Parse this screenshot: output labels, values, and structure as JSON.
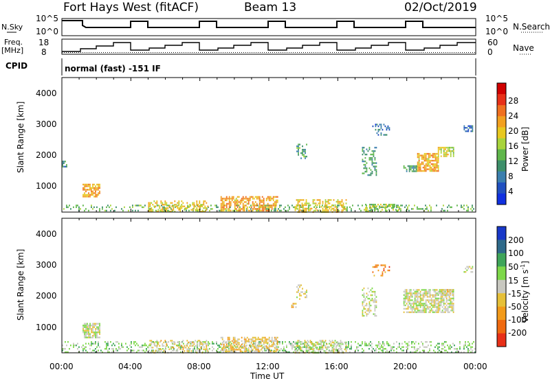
{
  "header": {
    "station": "Fort Hays West (fitACF)",
    "beam": "Beam 13",
    "date": "02/Oct/2019"
  },
  "top_panels": {
    "nsky_label": "N.Sky",
    "nsky_ticks": [
      "10^5",
      "10^0"
    ],
    "nsearch_label": "N.Search",
    "nsearch_ticks": [
      "10^5",
      "10^0"
    ],
    "freq_label_1": "Freq.",
    "freq_label_2": "[MHz]",
    "freq_ticks": [
      "18",
      "8"
    ],
    "nave_label": "Nave",
    "nave_ticks": [
      "60",
      "0"
    ],
    "cpid_label": "CPID",
    "cpid_text": "normal (fast) -151 IF"
  },
  "x_axis": {
    "ticks": [
      "00:00",
      "04:00",
      "08:00",
      "12:00",
      "16:00",
      "20:00",
      "00:00"
    ],
    "label": "Time UT"
  },
  "power_panel": {
    "ylabel": "Slant Range [km]",
    "yticks": [
      "4000",
      "3000",
      "2000",
      "1000"
    ],
    "colorbar_label": "Power [dB]",
    "colorbar_ticks": [
      "28",
      "24",
      "20",
      "16",
      "12",
      "8",
      "4"
    ],
    "colors": [
      "#1030e0",
      "#2050c0",
      "#3b7fae",
      "#3d8f6a",
      "#5fb64b",
      "#a8d43c",
      "#e8c820",
      "#f2a020",
      "#f07020",
      "#e83018",
      "#d00000"
    ]
  },
  "velocity_panel": {
    "ylabel": "Slant Range [km]",
    "yticks": [
      "4000",
      "3000",
      "2000",
      "1000"
    ],
    "colorbar_label": "Velocity [m s^-1]",
    "colorbar_ticks": [
      "200",
      "100",
      "50",
      "15",
      "-15",
      "-50",
      "-100",
      "-200"
    ],
    "colors": [
      "#1838c8",
      "#2f6a8a",
      "#3fa55a",
      "#7ed84a",
      "#c8c8c0",
      "#e6c038",
      "#f29a1a",
      "#f06a10",
      "#e83018"
    ]
  },
  "chart_data": [
    {
      "type": "heatmap",
      "title": "Fort Hays West (fitACF)",
      "xlabel": "Time UT",
      "ylabel": "Slant Range [km]",
      "colorbar": "Power [dB]",
      "x_range_hours": [
        0,
        24
      ],
      "y_range_km": [
        180,
        4550
      ],
      "c_range": [
        0,
        30
      ],
      "patches": [
        {
          "t0": 0.0,
          "t1": 24.0,
          "r0": 220,
          "r1": 420,
          "c": 12,
          "density": 0.28
        },
        {
          "t0": 5.0,
          "t1": 8.5,
          "r0": 200,
          "r1": 560,
          "c": 18,
          "density": 0.45
        },
        {
          "t0": 9.2,
          "t1": 12.5,
          "r0": 200,
          "r1": 700,
          "c": 20,
          "density": 0.6
        },
        {
          "t0": 13.5,
          "t1": 16.5,
          "r0": 200,
          "r1": 600,
          "c": 18,
          "density": 0.5
        },
        {
          "t0": 17.5,
          "t1": 19.5,
          "r0": 200,
          "r1": 450,
          "c": 14,
          "density": 0.35
        },
        {
          "t0": 1.2,
          "t1": 2.2,
          "r0": 700,
          "r1": 1100,
          "c": 20,
          "density": 0.75
        },
        {
          "t0": 0.0,
          "t1": 0.3,
          "r0": 1650,
          "r1": 1850,
          "c": 8,
          "density": 0.6
        },
        {
          "t0": 13.6,
          "t1": 14.2,
          "r0": 1900,
          "r1": 2400,
          "c": 10,
          "density": 0.45
        },
        {
          "t0": 17.4,
          "t1": 18.2,
          "r0": 1400,
          "r1": 2300,
          "c": 10,
          "density": 0.35
        },
        {
          "t0": 19.8,
          "t1": 20.6,
          "r0": 1500,
          "r1": 1700,
          "c": 10,
          "density": 0.55
        },
        {
          "t0": 20.6,
          "t1": 21.8,
          "r0": 1500,
          "r1": 2100,
          "c": 20,
          "density": 0.72
        },
        {
          "t0": 21.8,
          "t1": 22.7,
          "r0": 2000,
          "r1": 2300,
          "c": 16,
          "density": 0.7
        },
        {
          "t0": 23.3,
          "t1": 23.8,
          "r0": 2800,
          "r1": 3000,
          "c": 6,
          "density": 0.5
        },
        {
          "t0": 18.0,
          "t1": 19.0,
          "r0": 2700,
          "r1": 3050,
          "c": 6,
          "density": 0.25
        }
      ]
    },
    {
      "type": "heatmap",
      "xlabel": "Time UT",
      "ylabel": "Slant Range [km]",
      "colorbar": "Velocity [m s^-1]",
      "x_range_hours": [
        0,
        24
      ],
      "y_range_km": [
        180,
        4550
      ],
      "c_range": [
        -200,
        200
      ],
      "patches": [
        {
          "t0": 0.0,
          "t1": 24.0,
          "r0": 220,
          "r1": 560,
          "c": 40,
          "density": 0.3
        },
        {
          "t0": 5.0,
          "t1": 8.5,
          "r0": 200,
          "r1": 600,
          "c": -30,
          "density": 0.4
        },
        {
          "t0": 9.2,
          "t1": 12.5,
          "r0": 200,
          "r1": 700,
          "c": -40,
          "density": 0.6
        },
        {
          "t0": 13.5,
          "t1": 16.5,
          "r0": 200,
          "r1": 600,
          "c": 0,
          "density": 0.45
        },
        {
          "t0": 1.2,
          "t1": 2.2,
          "r0": 700,
          "r1": 1150,
          "c": 0,
          "density": 0.8
        },
        {
          "t0": 13.3,
          "t1": 13.6,
          "r0": 1650,
          "r1": 1800,
          "c": -60,
          "density": 0.8
        },
        {
          "t0": 13.6,
          "t1": 14.2,
          "r0": 1900,
          "r1": 2400,
          "c": 0,
          "density": 0.45
        },
        {
          "t0": 17.4,
          "t1": 18.2,
          "r0": 1400,
          "r1": 2300,
          "c": 0,
          "density": 0.4
        },
        {
          "t0": 19.8,
          "t1": 22.7,
          "r0": 1500,
          "r1": 2250,
          "c": 0,
          "density": 0.72
        },
        {
          "t0": 22.0,
          "t1": 22.7,
          "r0": 2050,
          "r1": 2250,
          "c": -20,
          "density": 0.6
        },
        {
          "t0": 23.3,
          "t1": 23.8,
          "r0": 2800,
          "r1": 3000,
          "c": 0,
          "density": 0.5
        },
        {
          "t0": 18.0,
          "t1": 19.0,
          "r0": 2700,
          "r1": 3050,
          "c": -110,
          "density": 0.25
        }
      ]
    }
  ]
}
